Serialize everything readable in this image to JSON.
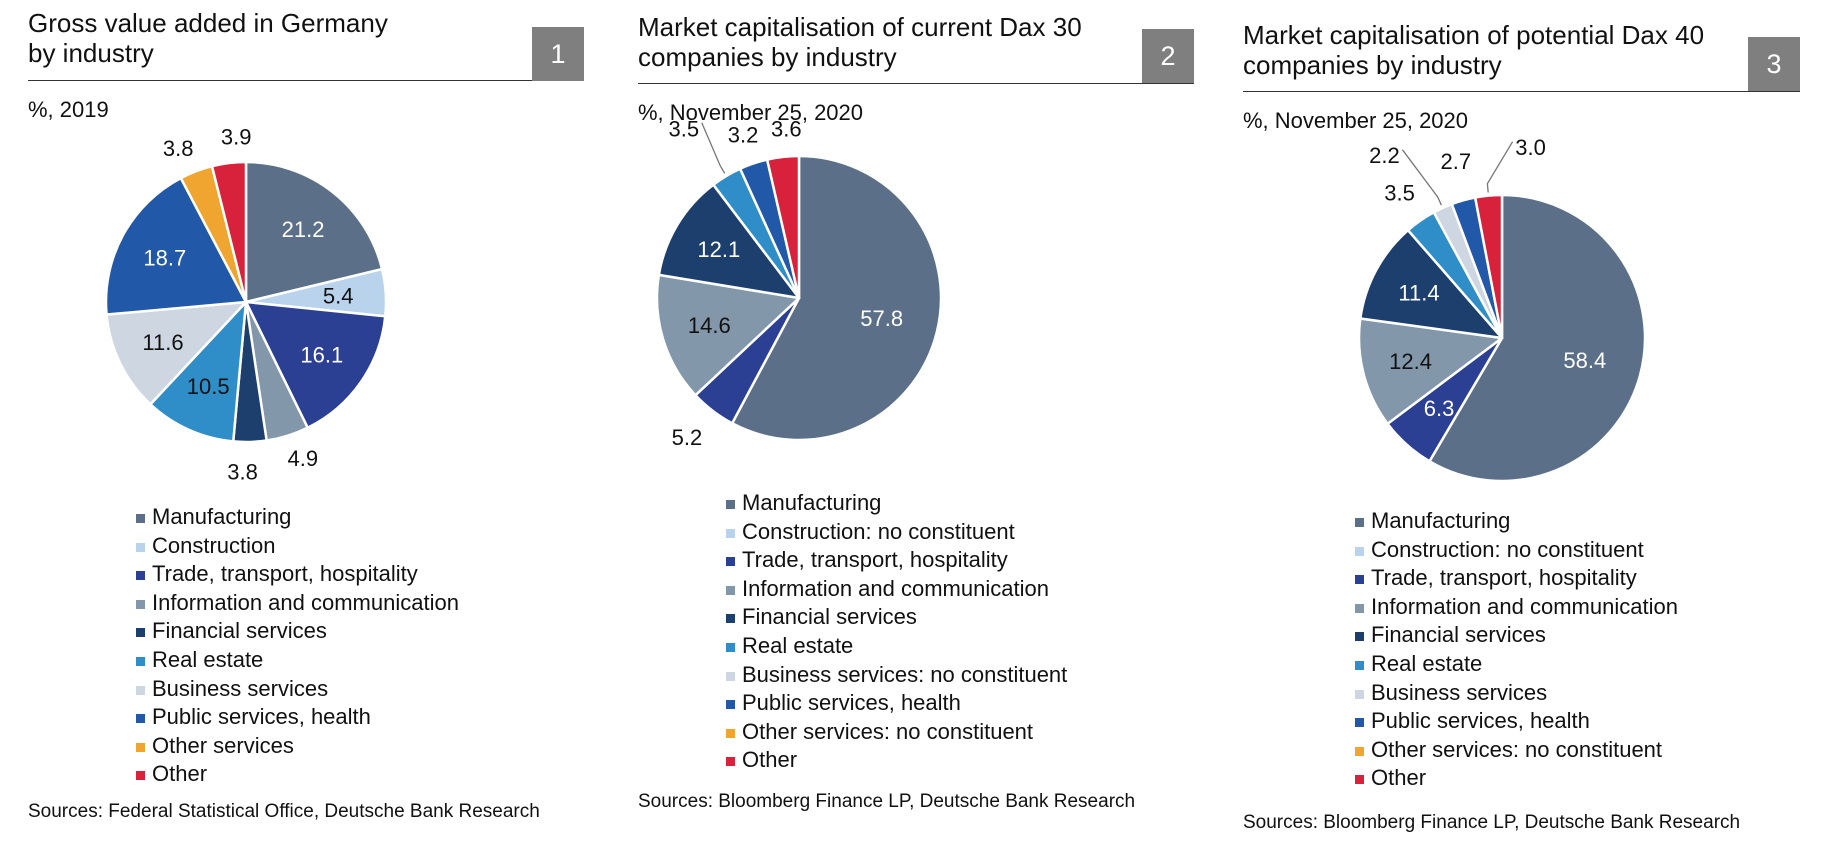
{
  "chart_data": [
    {
      "type": "pie",
      "number": "1",
      "title": "Gross value added in Germany\nby industry",
      "subtitle": "%, 2019",
      "legend": [
        {
          "name": "Manufacturing",
          "color": "#5b7088"
        },
        {
          "name": "Construction",
          "color": "#b9d3ec"
        },
        {
          "name": "Trade, transport, hospitality",
          "color": "#2b3f93"
        },
        {
          "name": "Information and communication",
          "color": "#8397ab"
        },
        {
          "name": "Financial services",
          "color": "#1c3f6e"
        },
        {
          "name": "Real estate",
          "color": "#2f8ec7"
        },
        {
          "name": "Business services",
          "color": "#cdd6e1"
        },
        {
          "name": "Public services, health",
          "color": "#2158a8"
        },
        {
          "name": "Other services",
          "color": "#f0a530"
        },
        {
          "name": "Other",
          "color": "#d8213a"
        }
      ],
      "slices": [
        {
          "category": "Manufacturing",
          "value": 21.2,
          "label": "21.2",
          "label_style": "inside-light"
        },
        {
          "category": "Construction",
          "value": 5.4,
          "label": "5.4",
          "label_style": "inside-dark"
        },
        {
          "category": "Trade, transport, hospitality",
          "value": 16.1,
          "label": "16.1",
          "label_style": "inside-light"
        },
        {
          "category": "Information and communication",
          "value": 4.9,
          "label": "4.9",
          "label_style": "outside"
        },
        {
          "category": "Financial services",
          "value": 3.8,
          "label": "3.8",
          "label_style": "outside"
        },
        {
          "category": "Real estate",
          "value": 10.5,
          "label": "10.5",
          "label_style": "inside-dark"
        },
        {
          "category": "Business services",
          "value": 11.6,
          "label": "11.6",
          "label_style": "inside-dark"
        },
        {
          "category": "Public services, health",
          "value": 18.7,
          "label": "18.7",
          "label_style": "inside-light"
        },
        {
          "category": "Other services",
          "value": 3.8,
          "label": "3.8",
          "label_style": "outside"
        },
        {
          "category": "Other",
          "value": 3.9,
          "label": "3.9",
          "label_style": "outside"
        }
      ],
      "source": "Sources: Federal Statistical Office, Deutsche Bank Research"
    },
    {
      "type": "pie",
      "number": "2",
      "title": "Market capitalisation of current Dax 30\ncompanies by industry",
      "subtitle": "%, November 25, 2020",
      "legend": [
        {
          "name": "Manufacturing",
          "color": "#5b7088"
        },
        {
          "name": "Construction: no constituent",
          "color": "#b9d3ec"
        },
        {
          "name": "Trade, transport, hospitality",
          "color": "#2b3f93"
        },
        {
          "name": "Information and communication",
          "color": "#8397ab"
        },
        {
          "name": "Financial services",
          "color": "#1c3f6e"
        },
        {
          "name": "Real estate",
          "color": "#2f8ec7"
        },
        {
          "name": "Business services: no constituent",
          "color": "#cdd6e1"
        },
        {
          "name": "Public services, health",
          "color": "#2158a8"
        },
        {
          "name": "Other services: no constituent",
          "color": "#f0a530"
        },
        {
          "name": "Other",
          "color": "#d8213a"
        }
      ],
      "slices": [
        {
          "category": "Manufacturing",
          "value": 57.8,
          "label": "57.8",
          "label_style": "inside-light"
        },
        {
          "category": "Trade, transport, hospitality",
          "value": 5.2,
          "label": "5.2",
          "label_style": "outside"
        },
        {
          "category": "Information and communication",
          "value": 14.6,
          "label": "14.6",
          "label_style": "inside-dark"
        },
        {
          "category": "Financial services",
          "value": 12.1,
          "label": "12.1",
          "label_style": "inside-light"
        },
        {
          "category": "Real estate",
          "value": 3.5,
          "label": "3.5",
          "label_style": "outside-leader"
        },
        {
          "category": "Public services, health",
          "value": 3.2,
          "label": "3.2",
          "label_style": "outside"
        },
        {
          "category": "Other",
          "value": 3.6,
          "label": "3.6",
          "label_style": "outside"
        }
      ],
      "source": "Sources: Bloomberg Finance LP, Deutsche Bank Research"
    },
    {
      "type": "pie",
      "number": "3",
      "title": "Market capitalisation of potential Dax 40\ncompanies by industry",
      "subtitle": "%, November 25, 2020",
      "legend": [
        {
          "name": "Manufacturing",
          "color": "#5b7088"
        },
        {
          "name": "Construction: no constituent",
          "color": "#b9d3ec"
        },
        {
          "name": "Trade, transport, hospitality",
          "color": "#2b3f93"
        },
        {
          "name": "Information and communication",
          "color": "#8397ab"
        },
        {
          "name": "Financial services",
          "color": "#1c3f6e"
        },
        {
          "name": "Real estate",
          "color": "#2f8ec7"
        },
        {
          "name": "Business services",
          "color": "#cdd6e1"
        },
        {
          "name": "Public services, health",
          "color": "#2158a8"
        },
        {
          "name": "Other services: no constituent",
          "color": "#f0a530"
        },
        {
          "name": "Other",
          "color": "#d8213a"
        }
      ],
      "slices": [
        {
          "category": "Manufacturing",
          "value": 58.4,
          "label": "58.4",
          "label_style": "inside-light"
        },
        {
          "category": "Trade, transport, hospitality",
          "value": 6.3,
          "label": "6.3",
          "label_style": "inside-light"
        },
        {
          "category": "Information and communication",
          "value": 12.4,
          "label": "12.4",
          "label_style": "inside-dark"
        },
        {
          "category": "Financial services",
          "value": 11.4,
          "label": "11.4",
          "label_style": "inside-light"
        },
        {
          "category": "Real estate",
          "value": 3.5,
          "label": "3.5",
          "label_style": "outside"
        },
        {
          "category": "Business services",
          "value": 2.2,
          "label": "2.2",
          "label_style": "outside-leader"
        },
        {
          "category": "Public services, health",
          "value": 2.7,
          "label": "2.7",
          "label_style": "outside"
        },
        {
          "category": "Other",
          "value": 3.0,
          "label": "3.0",
          "label_style": "outside-leader"
        }
      ],
      "source": "Sources: Bloomberg Finance LP, Deutsche Bank Research"
    }
  ]
}
